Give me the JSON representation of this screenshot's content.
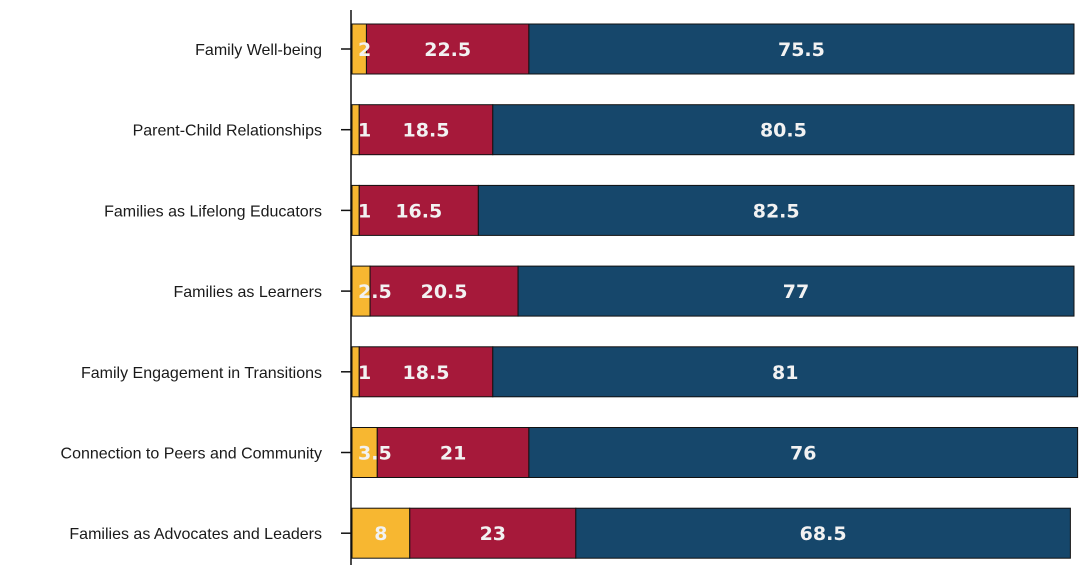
{
  "chart_data": {
    "type": "bar",
    "orientation": "horizontal",
    "stacked": true,
    "categories": [
      "Family Well-being",
      "Parent-Child Relationships",
      "Families as Lifelong Educators",
      "Families as Learners",
      "Family Engagement in Transitions",
      "Connection to Peers and Community",
      "Families as Advocates and Leaders"
    ],
    "series": [
      {
        "color": "#f7b731",
        "values": [
          2,
          1,
          1,
          2.5,
          1,
          3.5,
          8
        ],
        "labels": [
          "2",
          "1",
          "1",
          "2.5",
          "1",
          "3.5",
          "8"
        ]
      },
      {
        "color": "#a6193a",
        "values": [
          22.5,
          18.5,
          16.5,
          20.5,
          18.5,
          21,
          23
        ],
        "labels": [
          "22.5",
          "18.5",
          "16.5",
          "20.5",
          "18.5",
          "21",
          "23"
        ]
      },
      {
        "color": "#16476b",
        "values": [
          75.5,
          80.5,
          82.5,
          77,
          81,
          76,
          68.5
        ],
        "labels": [
          "75.5",
          "80.5",
          "82.5",
          "77",
          "81",
          "76",
          "68.5"
        ]
      }
    ],
    "xlim": [
      0,
      100
    ],
    "grid": false,
    "legend": "none",
    "bar_edge_color": "#111111"
  }
}
